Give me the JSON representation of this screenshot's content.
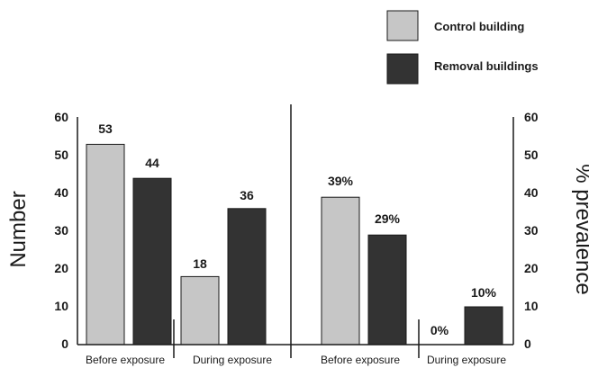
{
  "chart_data": [
    {
      "type": "bar",
      "ylabel": "Number",
      "ylim": [
        0,
        60
      ],
      "yticks": [
        "0",
        "10",
        "20",
        "30",
        "40",
        "50",
        "60"
      ],
      "categories": [
        "Before exposure",
        "During exposure"
      ],
      "series": [
        {
          "name": "Control building",
          "values": [
            53,
            18
          ],
          "labels": [
            "53",
            "18"
          ]
        },
        {
          "name": "Removal buildings",
          "values": [
            44,
            36
          ],
          "labels": [
            "44",
            "36"
          ]
        }
      ]
    },
    {
      "type": "bar",
      "ylabel": "% prevalence",
      "ylim": [
        0,
        60
      ],
      "yticks": [
        "0",
        "10",
        "20",
        "30",
        "40",
        "50",
        "60"
      ],
      "categories": [
        "Before exposure",
        "During exposure"
      ],
      "series": [
        {
          "name": "Control building",
          "values": [
            39,
            0
          ],
          "labels": [
            "39%",
            "0%"
          ]
        },
        {
          "name": "Removal buildings",
          "values": [
            29,
            10
          ],
          "labels": [
            "29%",
            "10%"
          ]
        }
      ]
    }
  ],
  "legend": {
    "placement": "top-right",
    "items": [
      {
        "label": "Control building",
        "color": "#c6c6c6"
      },
      {
        "label": "Removal buildings",
        "color": "#333333"
      }
    ]
  },
  "colors": {
    "control": "#c6c6c6",
    "removal": "#333333",
    "axis": "#1a1a1a"
  }
}
